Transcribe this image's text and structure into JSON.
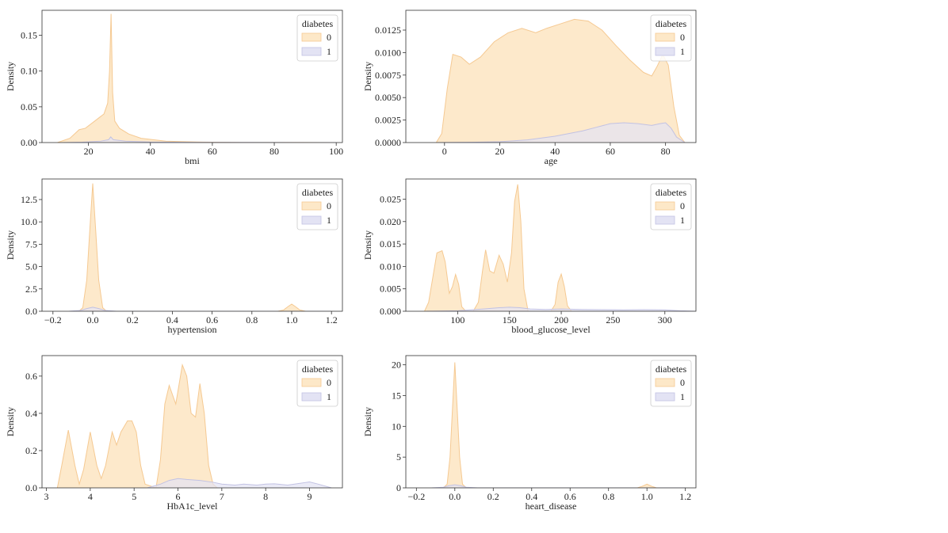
{
  "colors": {
    "class_0_fill": "#fde8c8",
    "class_0_line": "#f5c992",
    "class_1_fill": "#e3e3f4",
    "class_1_line": "#c2c2e3",
    "axis": "#333333"
  },
  "chart_data": [
    {
      "type": "area",
      "xlabel": "bmi",
      "ylabel": "Density",
      "xlim": [
        5,
        102
      ],
      "ylim": [
        0,
        0.185
      ],
      "xticks": [
        20,
        40,
        60,
        80,
        100
      ],
      "xtick_labels": [
        "20",
        "40",
        "60",
        "80",
        "100"
      ],
      "yticks": [
        0,
        0.05,
        0.1,
        0.15
      ],
      "ytick_labels": [
        "0.00",
        "0.05",
        "0.10",
        "0.15"
      ],
      "legend": {
        "title": "diabetes",
        "labels": [
          "0",
          "1"
        ],
        "placement": "top-right"
      },
      "series": [
        {
          "name": "0",
          "x": [
            10,
            14,
            17,
            19,
            22,
            25,
            26.2,
            26.8,
            27.3,
            27.8,
            28.5,
            30,
            33,
            37,
            45,
            55,
            70,
            100
          ],
          "y": [
            0,
            0.006,
            0.018,
            0.02,
            0.03,
            0.04,
            0.055,
            0.1,
            0.18,
            0.07,
            0.03,
            0.02,
            0.012,
            0.006,
            0.002,
            0.0008,
            0.0002,
            0
          ]
        },
        {
          "name": "1",
          "x": [
            12,
            18,
            24,
            26.5,
            27.2,
            28,
            32,
            40,
            55,
            80,
            100
          ],
          "y": [
            0,
            0.0005,
            0.002,
            0.004,
            0.008,
            0.004,
            0.002,
            0.0008,
            0.0003,
            0.0001,
            0
          ]
        }
      ]
    },
    {
      "type": "area",
      "xlabel": "age",
      "ylabel": "Density",
      "xlim": [
        -14,
        91
      ],
      "ylim": [
        0,
        0.0147
      ],
      "xticks": [
        0,
        20,
        40,
        60,
        80
      ],
      "xtick_labels": [
        "0",
        "20",
        "40",
        "60",
        "80"
      ],
      "yticks": [
        0,
        0.0025,
        0.005,
        0.0075,
        0.01,
        0.0125
      ],
      "ytick_labels": [
        "0.0000",
        "0.0025",
        "0.0050",
        "0.0075",
        "0.0100",
        "0.0125"
      ],
      "legend": {
        "title": "diabetes",
        "labels": [
          "0",
          "1"
        ],
        "placement": "top-right"
      },
      "series": [
        {
          "name": "0",
          "x": [
            -3,
            -1,
            1,
            3,
            6,
            9,
            13,
            18,
            23,
            28,
            33,
            37,
            42,
            47,
            52,
            57,
            62,
            67,
            72,
            75,
            77,
            79,
            81,
            83,
            85,
            87
          ],
          "y": [
            0,
            0.001,
            0.006,
            0.0098,
            0.0095,
            0.0087,
            0.0095,
            0.0112,
            0.0122,
            0.0127,
            0.0122,
            0.0127,
            0.0132,
            0.0137,
            0.0135,
            0.0125,
            0.0108,
            0.0092,
            0.0078,
            0.0074,
            0.0085,
            0.0098,
            0.0086,
            0.004,
            0.0008,
            0
          ]
        },
        {
          "name": "1",
          "x": [
            -3,
            10,
            20,
            30,
            40,
            50,
            55,
            60,
            65,
            70,
            75,
            78,
            80,
            82,
            84,
            87
          ],
          "y": [
            0,
            3e-05,
            0.0001,
            0.0003,
            0.0007,
            0.0013,
            0.0017,
            0.0021,
            0.0022,
            0.0021,
            0.0019,
            0.0021,
            0.0022,
            0.0016,
            0.0006,
            0
          ]
        }
      ]
    },
    {
      "type": "area",
      "xlabel": "hypertension",
      "ylabel": "Density",
      "xlim": [
        -0.255,
        1.255
      ],
      "ylim": [
        0,
        14.8
      ],
      "xticks": [
        -0.2,
        0,
        0.2,
        0.4,
        0.6,
        0.8,
        1.0,
        1.2
      ],
      "xtick_labels": [
        "−0.2",
        "0.0",
        "0.2",
        "0.4",
        "0.6",
        "0.8",
        "1.0",
        "1.2"
      ],
      "yticks": [
        0,
        2.5,
        5,
        7.5,
        10,
        12.5
      ],
      "ytick_labels": [
        "0.0",
        "2.5",
        "5.0",
        "7.5",
        "10.0",
        "12.5"
      ],
      "legend": {
        "title": "diabetes",
        "labels": [
          "0",
          "1"
        ],
        "placement": "top-right"
      },
      "series": [
        {
          "name": "0",
          "x": [
            -0.07,
            -0.05,
            -0.03,
            -0.015,
            0,
            0.015,
            0.03,
            0.05,
            0.07,
            0.93,
            0.96,
            0.98,
            1.0,
            1.02,
            1.04,
            1.07
          ],
          "y": [
            0,
            0.4,
            3.5,
            9,
            14.3,
            9,
            3.5,
            0.4,
            0,
            0,
            0.15,
            0.5,
            0.8,
            0.5,
            0.15,
            0
          ]
        },
        {
          "name": "1",
          "x": [
            -0.12,
            -0.06,
            -0.03,
            0,
            0.03,
            0.06,
            0.12,
            0.6,
            1.2
          ],
          "y": [
            0,
            0.1,
            0.3,
            0.45,
            0.3,
            0.1,
            0,
            0,
            0
          ]
        }
      ]
    },
    {
      "type": "area",
      "xlabel": "blood_glucose_level",
      "ylabel": "Density",
      "xlim": [
        50,
        330
      ],
      "ylim": [
        0,
        0.0295
      ],
      "xticks": [
        100,
        150,
        200,
        250,
        300
      ],
      "xtick_labels": [
        "100",
        "150",
        "200",
        "250",
        "300"
      ],
      "yticks": [
        0,
        0.005,
        0.01,
        0.015,
        0.02,
        0.025
      ],
      "ytick_labels": [
        "0.000",
        "0.005",
        "0.010",
        "0.015",
        "0.020",
        "0.025"
      ],
      "legend": {
        "title": "diabetes",
        "labels": [
          "0",
          "1"
        ],
        "placement": "top-right"
      },
      "series": [
        {
          "name": "0",
          "x": [
            68,
            72,
            76,
            80,
            85,
            88,
            92,
            95,
            98,
            101,
            104,
            108,
            115,
            120,
            124,
            127,
            131,
            135,
            140,
            144,
            148,
            152,
            155,
            158,
            161,
            164,
            168,
            190,
            194,
            197,
            200,
            203,
            206,
            210
          ],
          "y": [
            0,
            0.002,
            0.0075,
            0.013,
            0.0135,
            0.011,
            0.004,
            0.0055,
            0.0082,
            0.006,
            0.001,
            0,
            0,
            0.002,
            0.009,
            0.0137,
            0.009,
            0.0085,
            0.0125,
            0.0105,
            0.0065,
            0.013,
            0.0245,
            0.0283,
            0.02,
            0.005,
            0,
            0,
            0.0015,
            0.0065,
            0.0083,
            0.0055,
            0.0012,
            0
          ]
        },
        {
          "name": "1",
          "x": [
            70,
            100,
            125,
            140,
            150,
            160,
            170,
            185,
            200,
            220,
            240,
            260,
            280,
            300,
            315,
            330
          ],
          "y": [
            0,
            0.0001,
            0.0005,
            0.0008,
            0.0009,
            0.0008,
            0.0005,
            0.0004,
            0.0005,
            0.0004,
            0.00035,
            0.0003,
            0.00035,
            0.0003,
            0.0001,
            0
          ]
        }
      ]
    },
    {
      "type": "area",
      "xlabel": "HbA1c_level",
      "ylabel": "Density",
      "xlim": [
        2.9,
        9.75
      ],
      "ylim": [
        0,
        0.71
      ],
      "xticks": [
        3,
        4,
        5,
        6,
        7,
        8,
        9
      ],
      "xtick_labels": [
        "3",
        "4",
        "5",
        "6",
        "7",
        "8",
        "9"
      ],
      "yticks": [
        0,
        0.2,
        0.4,
        0.6
      ],
      "ytick_labels": [
        "0.0",
        "0.2",
        "0.4",
        "0.6"
      ],
      "legend": {
        "title": "diabetes",
        "labels": [
          "0",
          "1"
        ],
        "placement": "top-right"
      },
      "series": [
        {
          "name": "0",
          "x": [
            3.25,
            3.35,
            3.5,
            3.65,
            3.75,
            3.85,
            4.0,
            4.15,
            4.25,
            4.35,
            4.5,
            4.6,
            4.7,
            4.85,
            4.95,
            5.05,
            5.15,
            5.25,
            5.5,
            5.6,
            5.7,
            5.8,
            5.95,
            6.1,
            6.2,
            6.3,
            6.4,
            6.5,
            6.6,
            6.7,
            6.8,
            6.9
          ],
          "y": [
            0,
            0.12,
            0.31,
            0.12,
            0.02,
            0.1,
            0.3,
            0.12,
            0.05,
            0.12,
            0.3,
            0.23,
            0.3,
            0.36,
            0.36,
            0.3,
            0.12,
            0.02,
            0,
            0.15,
            0.45,
            0.55,
            0.45,
            0.66,
            0.6,
            0.4,
            0.38,
            0.56,
            0.4,
            0.12,
            0.02,
            0
          ]
        },
        {
          "name": "1",
          "x": [
            5.3,
            5.6,
            5.8,
            6.0,
            6.2,
            6.5,
            6.8,
            7.0,
            7.3,
            7.5,
            7.8,
            8.0,
            8.2,
            8.5,
            8.8,
            9.0,
            9.2,
            9.5
          ],
          "y": [
            0,
            0.02,
            0.04,
            0.05,
            0.045,
            0.04,
            0.03,
            0.02,
            0.015,
            0.02,
            0.015,
            0.02,
            0.022,
            0.015,
            0.025,
            0.032,
            0.02,
            0
          ]
        }
      ]
    },
    {
      "type": "area",
      "xlabel": "heart_disease",
      "ylabel": "Density",
      "xlim": [
        -0.255,
        1.255
      ],
      "ylim": [
        0,
        21.5
      ],
      "xticks": [
        -0.2,
        0,
        0.2,
        0.4,
        0.6,
        0.8,
        1.0,
        1.2
      ],
      "xtick_labels": [
        "−0.2",
        "0.0",
        "0.2",
        "0.4",
        "0.6",
        "0.8",
        "1.0",
        "1.2"
      ],
      "yticks": [
        0,
        5,
        10,
        15,
        20
      ],
      "ytick_labels": [
        "0",
        "5",
        "10",
        "15",
        "20"
      ],
      "legend": {
        "title": "diabetes",
        "labels": [
          "0",
          "1"
        ],
        "placement": "top-right"
      },
      "series": [
        {
          "name": "0",
          "x": [
            -0.06,
            -0.04,
            -0.025,
            -0.012,
            0,
            0.012,
            0.025,
            0.04,
            0.06,
            0.95,
            0.975,
            1.0,
            1.025,
            1.05
          ],
          "y": [
            0,
            0.6,
            5,
            13,
            20.4,
            13,
            5,
            0.6,
            0,
            0,
            0.25,
            0.6,
            0.25,
            0
          ]
        },
        {
          "name": "1",
          "x": [
            -0.12,
            -0.06,
            -0.03,
            0,
            0.03,
            0.06,
            0.12,
            0.6,
            1.2
          ],
          "y": [
            0,
            0.1,
            0.35,
            0.5,
            0.35,
            0.1,
            0,
            0,
            0
          ]
        }
      ]
    }
  ]
}
